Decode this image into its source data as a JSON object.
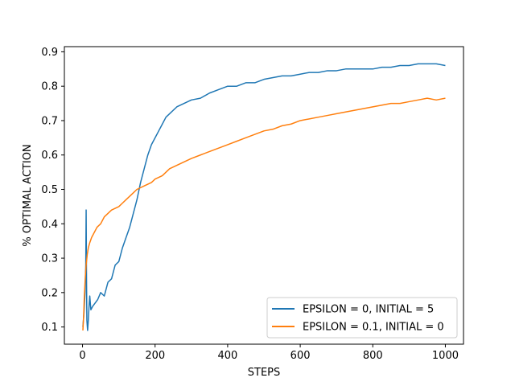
{
  "chart_data": {
    "type": "line",
    "title": "",
    "xlabel": "STEPS",
    "ylabel": "% OPTIMAL ACTION",
    "xlim": [
      -50,
      1050
    ],
    "ylim": [
      0.05,
      0.915
    ],
    "xticks": [
      0,
      200,
      400,
      600,
      800,
      1000
    ],
    "yticks": [
      0.1,
      0.2,
      0.3,
      0.4,
      0.5,
      0.6,
      0.7,
      0.8,
      0.9
    ],
    "grid": false,
    "legend_placement": "lower right",
    "series": [
      {
        "name": "EPSILON = 0, INITIAL = 5",
        "color": "#1f77b4",
        "points": [
          [
            1,
            0.1
          ],
          [
            4,
            0.14
          ],
          [
            7,
            0.2
          ],
          [
            9,
            0.28
          ],
          [
            10,
            0.44
          ],
          [
            11,
            0.24
          ],
          [
            12,
            0.12
          ],
          [
            14,
            0.09
          ],
          [
            16,
            0.12
          ],
          [
            18,
            0.16
          ],
          [
            20,
            0.19
          ],
          [
            23,
            0.15
          ],
          [
            28,
            0.16
          ],
          [
            35,
            0.17
          ],
          [
            42,
            0.18
          ],
          [
            50,
            0.2
          ],
          [
            60,
            0.19
          ],
          [
            70,
            0.23
          ],
          [
            80,
            0.24
          ],
          [
            90,
            0.28
          ],
          [
            100,
            0.29
          ],
          [
            110,
            0.33
          ],
          [
            120,
            0.36
          ],
          [
            130,
            0.39
          ],
          [
            140,
            0.43
          ],
          [
            150,
            0.47
          ],
          [
            160,
            0.52
          ],
          [
            170,
            0.56
          ],
          [
            180,
            0.6
          ],
          [
            190,
            0.63
          ],
          [
            200,
            0.65
          ],
          [
            210,
            0.67
          ],
          [
            220,
            0.69
          ],
          [
            230,
            0.71
          ],
          [
            240,
            0.72
          ],
          [
            260,
            0.74
          ],
          [
            280,
            0.75
          ],
          [
            300,
            0.76
          ],
          [
            325,
            0.765
          ],
          [
            350,
            0.78
          ],
          [
            375,
            0.79
          ],
          [
            400,
            0.8
          ],
          [
            425,
            0.8
          ],
          [
            450,
            0.81
          ],
          [
            475,
            0.81
          ],
          [
            500,
            0.82
          ],
          [
            525,
            0.825
          ],
          [
            550,
            0.83
          ],
          [
            575,
            0.83
          ],
          [
            600,
            0.835
          ],
          [
            625,
            0.84
          ],
          [
            650,
            0.84
          ],
          [
            675,
            0.845
          ],
          [
            700,
            0.845
          ],
          [
            725,
            0.85
          ],
          [
            750,
            0.85
          ],
          [
            775,
            0.85
          ],
          [
            800,
            0.85
          ],
          [
            825,
            0.855
          ],
          [
            850,
            0.855
          ],
          [
            875,
            0.86
          ],
          [
            900,
            0.86
          ],
          [
            925,
            0.865
          ],
          [
            950,
            0.865
          ],
          [
            975,
            0.865
          ],
          [
            1000,
            0.86
          ]
        ]
      },
      {
        "name": "EPSILON = 0.1, INITIAL = 0",
        "color": "#ff7f0e",
        "points": [
          [
            1,
            0.09
          ],
          [
            3,
            0.13
          ],
          [
            5,
            0.19
          ],
          [
            8,
            0.25
          ],
          [
            10,
            0.28
          ],
          [
            13,
            0.31
          ],
          [
            16,
            0.33
          ],
          [
            20,
            0.345
          ],
          [
            25,
            0.36
          ],
          [
            30,
            0.37
          ],
          [
            40,
            0.39
          ],
          [
            50,
            0.4
          ],
          [
            60,
            0.42
          ],
          [
            70,
            0.43
          ],
          [
            80,
            0.44
          ],
          [
            90,
            0.445
          ],
          [
            100,
            0.45
          ],
          [
            110,
            0.46
          ],
          [
            120,
            0.47
          ],
          [
            130,
            0.48
          ],
          [
            140,
            0.49
          ],
          [
            150,
            0.5
          ],
          [
            160,
            0.505
          ],
          [
            170,
            0.51
          ],
          [
            180,
            0.515
          ],
          [
            190,
            0.52
          ],
          [
            200,
            0.53
          ],
          [
            220,
            0.54
          ],
          [
            240,
            0.56
          ],
          [
            260,
            0.57
          ],
          [
            280,
            0.58
          ],
          [
            300,
            0.59
          ],
          [
            325,
            0.6
          ],
          [
            350,
            0.61
          ],
          [
            375,
            0.62
          ],
          [
            400,
            0.63
          ],
          [
            425,
            0.64
          ],
          [
            450,
            0.65
          ],
          [
            475,
            0.66
          ],
          [
            500,
            0.67
          ],
          [
            525,
            0.675
          ],
          [
            550,
            0.685
          ],
          [
            575,
            0.69
          ],
          [
            600,
            0.7
          ],
          [
            625,
            0.705
          ],
          [
            650,
            0.71
          ],
          [
            675,
            0.715
          ],
          [
            700,
            0.72
          ],
          [
            725,
            0.725
          ],
          [
            750,
            0.73
          ],
          [
            775,
            0.735
          ],
          [
            800,
            0.74
          ],
          [
            825,
            0.745
          ],
          [
            850,
            0.75
          ],
          [
            875,
            0.75
          ],
          [
            900,
            0.755
          ],
          [
            925,
            0.76
          ],
          [
            950,
            0.765
          ],
          [
            975,
            0.76
          ],
          [
            1000,
            0.765
          ]
        ]
      }
    ]
  }
}
